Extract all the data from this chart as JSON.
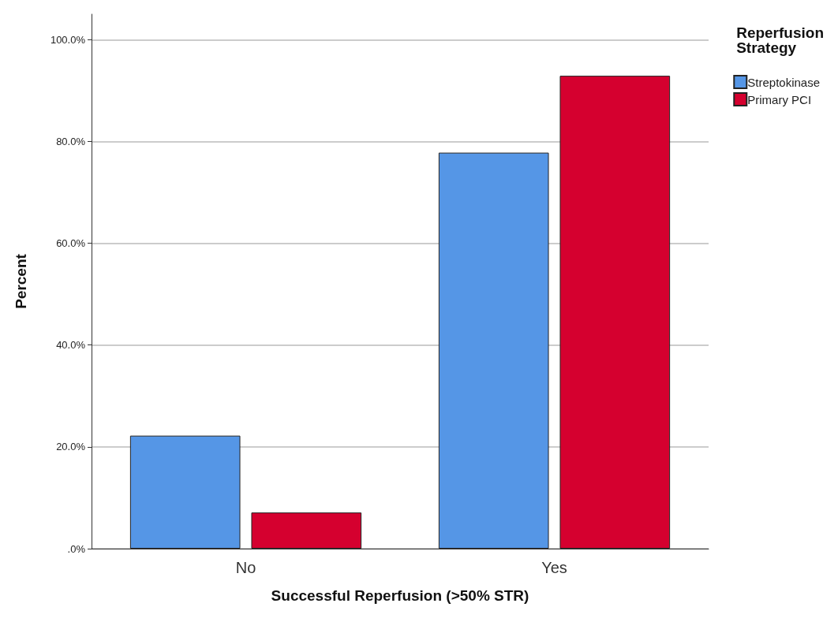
{
  "chart_data": {
    "type": "bar",
    "xlabel": "Successful Reperfusion (>50% STR)",
    "ylabel": "Percent",
    "legend_title": "Reperfusion\nStrategy",
    "categories": [
      "No",
      "Yes"
    ],
    "series": [
      {
        "name": "Streptokinase",
        "color": "#5596e6",
        "values": [
          22.2,
          77.8
        ]
      },
      {
        "name": "Primary PCI",
        "color": "#d5002f",
        "values": [
          7.1,
          92.9
        ]
      }
    ],
    "ylim": [
      0,
      105
    ],
    "yticks": [
      {
        "value": 0,
        "label": ".0%"
      },
      {
        "value": 20,
        "label": "20.0%"
      },
      {
        "value": 40,
        "label": "40.0%"
      },
      {
        "value": 60,
        "label": "60.0%"
      },
      {
        "value": 80,
        "label": "80.0%"
      },
      {
        "value": 100,
        "label": "100.0%"
      }
    ],
    "grid": "y",
    "legend": "top right"
  }
}
